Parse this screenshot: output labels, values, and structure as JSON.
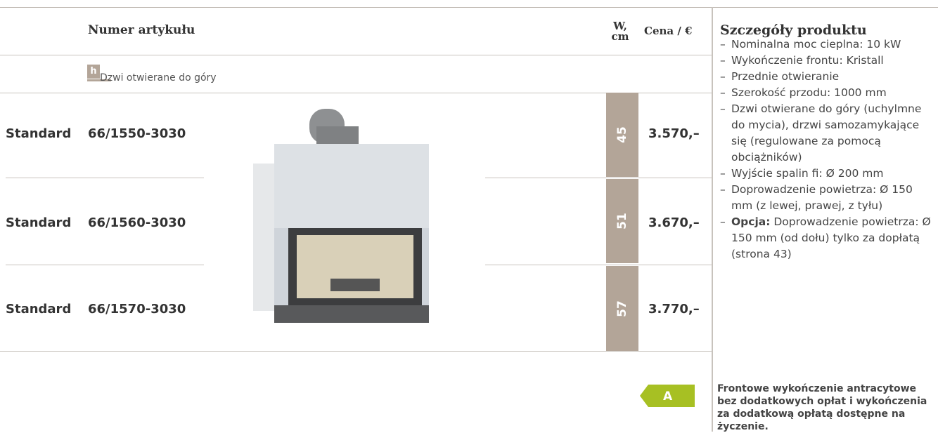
{
  "header": {
    "article": "Numer artykułu",
    "width": "W, cm",
    "price": "Cena / €",
    "details": "Szczegóły produktu"
  },
  "door_type": {
    "icon": "h",
    "label": "Dzwi otwierane do góry"
  },
  "rows": [
    {
      "variant": "Standard",
      "article": "66/1550-3030",
      "width": "45",
      "price": "3.570,–"
    },
    {
      "variant": "Standard",
      "article": "66/1560-3030",
      "width": "51",
      "price": "3.670,–"
    },
    {
      "variant": "Standard",
      "article": "66/1570-3030",
      "width": "57",
      "price": "3.770,–"
    }
  ],
  "details": [
    {
      "text": "Nominalna moc cieplna: 10 kW"
    },
    {
      "text": "Wykończenie frontu: Kristall"
    },
    {
      "text": "Przednie otwieranie"
    },
    {
      "text": "Szerokość przodu: 1000 mm"
    },
    {
      "text": "Dzwi otwierane do góry (uchylmne do mycia), drzwi samozamykające się (regulowane za pomocą obciążników)"
    },
    {
      "text": "Wyjście spalin fi: Ø 200 mm"
    },
    {
      "text": "Doprowadzenie powietrza: Ø 150 mm (z lewej, prawej, z tyłu)"
    },
    {
      "bold": "Opcja:",
      "text": "Doprowadzenie powietrza: Ø 150 mm (od dołu) tylko za dopłatą (strona 43)"
    }
  ],
  "energy_label": "A",
  "note": "Frontowe wykończenie antracytowe bez dodatkowych opłat i wykończenia za dodatkową opłatą dostępne na życzenie."
}
